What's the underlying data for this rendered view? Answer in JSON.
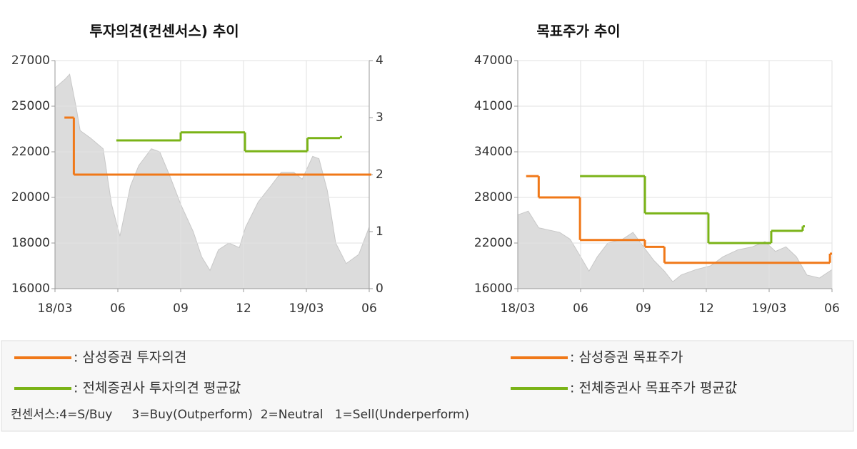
{
  "chart_data": [
    {
      "type": "line",
      "step": true,
      "title": "투자의견(컨센서스) 추이",
      "xlim": [
        0,
        15
      ],
      "xticks": [
        {
          "value": 0,
          "label": "18/03"
        },
        {
          "value": 3,
          "label": "06"
        },
        {
          "value": 6,
          "label": "09"
        },
        {
          "value": 9,
          "label": "12"
        },
        {
          "value": 12,
          "label": "19/03"
        },
        {
          "value": 15,
          "label": "06"
        }
      ],
      "ylim": [
        16000,
        27000
      ],
      "yticks": [
        16000,
        18000,
        20000,
        22000,
        25000,
        27000
      ],
      "y2lim": [
        0,
        4
      ],
      "y2ticks": [
        0,
        1,
        2,
        3,
        4
      ],
      "grid": true,
      "area": {
        "color": "#dcdcdc",
        "x": [
          0,
          0.5,
          0.7,
          1,
          1.2,
          1.7,
          2.3,
          2.7,
          3.1,
          3.6,
          4,
          4.6,
          5,
          5.5,
          6,
          6.6,
          7,
          7.4,
          7.8,
          8.3,
          8.8,
          9.1,
          9.7,
          10.3,
          10.8,
          11.4,
          11.8,
          12.3,
          12.6,
          13,
          13.4,
          13.9,
          14.5,
          15
        ],
        "values": [
          25800,
          26200,
          26400,
          25000,
          23400,
          22900,
          22200,
          19700,
          18300,
          20500,
          21400,
          22200,
          22000,
          20900,
          19700,
          18500,
          17400,
          16800,
          17700,
          18000,
          17800,
          18700,
          19800,
          20500,
          21100,
          21100,
          20800,
          21800,
          21700,
          20300,
          18000,
          17100,
          17500,
          18700
        ]
      },
      "series": [
        {
          "name": ": 삼성증권 투자의견",
          "color": "#f07818",
          "axis": "y2",
          "x": [
            0.45,
            0.9,
            15
          ],
          "values": [
            3,
            2,
            2
          ]
        },
        {
          "name": ": 전체증권사 투자의견 평균값",
          "color": "#7ab317",
          "axis": "y2",
          "x": [
            2.93,
            6,
            9.07,
            12.05,
            13.6
          ],
          "values": [
            2.6,
            2.74,
            2.41,
            2.64,
            2.66
          ]
        }
      ]
    },
    {
      "type": "line",
      "step": true,
      "title": "목표주가 추이",
      "xlim": [
        0,
        15
      ],
      "xticks": [
        {
          "value": 0,
          "label": "18/03"
        },
        {
          "value": 3,
          "label": "06"
        },
        {
          "value": 6,
          "label": "09"
        },
        {
          "value": 9,
          "label": "12"
        },
        {
          "value": 12,
          "label": "19/03"
        },
        {
          "value": 15,
          "label": "06"
        }
      ],
      "ylim": [
        16000,
        47000
      ],
      "yticks": [
        16000,
        22000,
        28000,
        34000,
        41000,
        47000
      ],
      "grid": true,
      "area": {
        "color": "#dcdcdc",
        "x": [
          0,
          0.5,
          1,
          2,
          2.5,
          3,
          3.4,
          3.8,
          4.3,
          5,
          5.5,
          6,
          6.5,
          7,
          7.4,
          7.8,
          8.5,
          9.2,
          9.8,
          10.5,
          11.2,
          11.8,
          12.3,
          12.8,
          13.3,
          13.8,
          14.4,
          15
        ],
        "values": [
          25700,
          26200,
          24000,
          23400,
          22500,
          20200,
          18300,
          20200,
          22000,
          22500,
          23400,
          21500,
          19700,
          18300,
          16900,
          17800,
          18500,
          19000,
          20200,
          21100,
          21500,
          22200,
          20900,
          21500,
          20200,
          17800,
          17400,
          18500
        ]
      },
      "series": [
        {
          "name": ": 삼성증권 목표주가",
          "color": "#f07818",
          "x": [
            0.4,
            1,
            2.97,
            6.07,
            7,
            14.9
          ],
          "values": [
            30800,
            28000,
            22400,
            21500,
            19400,
            20600
          ]
        },
        {
          "name": ": 전체증권사 목표주가 평균값",
          "color": "#7ab317",
          "x": [
            2.97,
            6.07,
            9.1,
            12.1,
            13.6
          ],
          "values": [
            30800,
            25900,
            22000,
            23600,
            24200
          ]
        }
      ]
    }
  ],
  "note": "컨센서스:4=S/Buy     3=Buy(Outperform)  2=Neutral   1=Sell(Underperform)"
}
